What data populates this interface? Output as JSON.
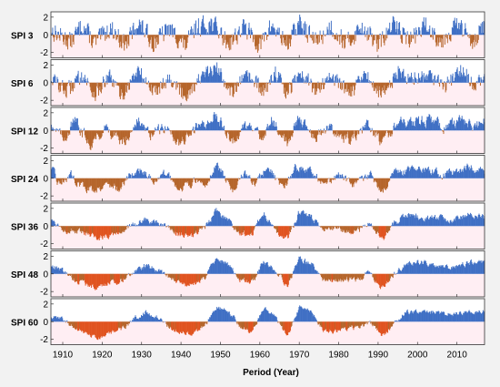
{
  "chart_data": {
    "type": "bar",
    "xlabel": "Period (Year)",
    "x_range": [
      1907,
      2017
    ],
    "x_ticks": [
      "1910",
      "1920",
      "1930",
      "1940",
      "1950",
      "1960",
      "1970",
      "1980",
      "1990",
      "2000",
      "2010"
    ],
    "y_ticks": [
      "2",
      "0",
      "-2"
    ],
    "ylim": [
      -2.6,
      2.6
    ],
    "grid": false,
    "colors": {
      "positive": "#3f6fc4",
      "negative": "#b5652a",
      "negative_alt": "#e0531f",
      "background_wet": "#ffffff",
      "background_dry": "#ffe0ea"
    },
    "panels": [
      {
        "label": "SPI 3",
        "series_key": "spi3",
        "waypoints": [
          [
            1907,
            0.5
          ],
          [
            1912,
            -0.8
          ],
          [
            1915,
            1.2
          ],
          [
            1918,
            -1.0
          ],
          [
            1922,
            0.8
          ],
          [
            1926,
            -1.2
          ],
          [
            1929,
            1.4
          ],
          [
            1933,
            -0.9
          ],
          [
            1937,
            0.7
          ],
          [
            1941,
            -1.3
          ],
          [
            1944,
            0.9
          ],
          [
            1948,
            1.3
          ],
          [
            1952,
            -1.0
          ],
          [
            1956,
            0.9
          ],
          [
            1960,
            -1.2
          ],
          [
            1963,
            1.1
          ],
          [
            1967,
            -1.1
          ],
          [
            1970,
            1.4
          ],
          [
            1974,
            -0.8
          ],
          [
            1978,
            0.9
          ],
          [
            1982,
            -1.0
          ],
          [
            1986,
            1.0
          ],
          [
            1990,
            -1.2
          ],
          [
            1994,
            1.2
          ],
          [
            1998,
            -0.6
          ],
          [
            2002,
            1.1
          ],
          [
            2006,
            -0.7
          ],
          [
            2010,
            1.2
          ],
          [
            2014,
            -0.6
          ],
          [
            2017,
            1.0
          ]
        ]
      },
      {
        "label": "SPI 6",
        "series_key": "spi6",
        "waypoints": [
          [
            1907,
            0.6
          ],
          [
            1911,
            -1.0
          ],
          [
            1915,
            1.0
          ],
          [
            1918,
            -1.3
          ],
          [
            1922,
            0.6
          ],
          [
            1925,
            -1.5
          ],
          [
            1929,
            1.4
          ],
          [
            1933,
            -1.0
          ],
          [
            1937,
            0.6
          ],
          [
            1941,
            -1.5
          ],
          [
            1945,
            0.6
          ],
          [
            1949,
            1.6
          ],
          [
            1953,
            -1.0
          ],
          [
            1957,
            0.8
          ],
          [
            1961,
            -1.1
          ],
          [
            1964,
            1.2
          ],
          [
            1967,
            -1.4
          ],
          [
            1970,
            1.5
          ],
          [
            1974,
            -0.9
          ],
          [
            1978,
            0.8
          ],
          [
            1983,
            -1.1
          ],
          [
            1987,
            0.8
          ],
          [
            1991,
            -1.4
          ],
          [
            1995,
            1.2
          ],
          [
            1999,
            0.5
          ],
          [
            2003,
            1.0
          ],
          [
            2007,
            -0.4
          ],
          [
            2011,
            1.4
          ],
          [
            2015,
            -0.5
          ],
          [
            2017,
            1.1
          ]
        ]
      },
      {
        "label": "SPI 12",
        "series_key": "spi12",
        "waypoints": [
          [
            1907,
            0.9
          ],
          [
            1910,
            -0.9
          ],
          [
            1913,
            1.0
          ],
          [
            1917,
            -1.4
          ],
          [
            1921,
            0.4
          ],
          [
            1925,
            -1.6
          ],
          [
            1929,
            1.3
          ],
          [
            1932,
            -0.6
          ],
          [
            1936,
            0.4
          ],
          [
            1940,
            -1.5
          ],
          [
            1944,
            0.3
          ],
          [
            1949,
            1.7
          ],
          [
            1953,
            -1.1
          ],
          [
            1957,
            0.6
          ],
          [
            1960,
            -1.0
          ],
          [
            1963,
            1.2
          ],
          [
            1967,
            -1.5
          ],
          [
            1970,
            1.6
          ],
          [
            1974,
            -0.7
          ],
          [
            1978,
            0.5
          ],
          [
            1983,
            -1.2
          ],
          [
            1987,
            0.6
          ],
          [
            1991,
            -1.6
          ],
          [
            1995,
            1.1
          ],
          [
            1999,
            0.7
          ],
          [
            2003,
            1.2
          ],
          [
            2007,
            0.2
          ],
          [
            2011,
            1.2
          ],
          [
            2015,
            0.3
          ],
          [
            2017,
            0.9
          ]
        ]
      },
      {
        "label": "SPI 24",
        "series_key": "spi24",
        "waypoints": [
          [
            1907,
            1.2
          ],
          [
            1909,
            -0.6
          ],
          [
            1912,
            0.4
          ],
          [
            1915,
            -1.0
          ],
          [
            1918,
            -1.3
          ],
          [
            1921,
            -0.6
          ],
          [
            1924,
            -1.2
          ],
          [
            1927,
            0.3
          ],
          [
            1930,
            1.0
          ],
          [
            1933,
            -0.3
          ],
          [
            1936,
            0.5
          ],
          [
            1940,
            -1.2
          ],
          [
            1943,
            -0.4
          ],
          [
            1946,
            -0.8
          ],
          [
            1949,
            1.6
          ],
          [
            1953,
            -1.3
          ],
          [
            1956,
            0.4
          ],
          [
            1959,
            -0.7
          ],
          [
            1962,
            1.4
          ],
          [
            1966,
            -1.6
          ],
          [
            1969,
            1.4
          ],
          [
            1973,
            0.6
          ],
          [
            1976,
            -0.6
          ],
          [
            1980,
            0.2
          ],
          [
            1984,
            -0.8
          ],
          [
            1988,
            0.4
          ],
          [
            1991,
            -1.7
          ],
          [
            1994,
            0.6
          ],
          [
            1998,
            0.9
          ],
          [
            2002,
            1.0
          ],
          [
            2006,
            0.5
          ],
          [
            2010,
            0.8
          ],
          [
            2013,
            1.3
          ],
          [
            2017,
            0.7
          ]
        ]
      },
      {
        "label": "SPI 36",
        "series_key": "spi36",
        "waypoints": [
          [
            1907,
            0.8
          ],
          [
            1910,
            -0.3
          ],
          [
            1913,
            -0.6
          ],
          [
            1916,
            -1.0
          ],
          [
            1919,
            -1.4
          ],
          [
            1922,
            -0.9
          ],
          [
            1925,
            -0.6
          ],
          [
            1928,
            0.2
          ],
          [
            1931,
            0.7
          ],
          [
            1934,
            0.3
          ],
          [
            1937,
            -0.4
          ],
          [
            1940,
            -1.0
          ],
          [
            1943,
            -1.1
          ],
          [
            1946,
            -0.3
          ],
          [
            1949,
            1.8
          ],
          [
            1952,
            0.6
          ],
          [
            1955,
            -0.9
          ],
          [
            1958,
            -0.7
          ],
          [
            1961,
            1.5
          ],
          [
            1964,
            -0.6
          ],
          [
            1967,
            -1.4
          ],
          [
            1970,
            1.6
          ],
          [
            1973,
            1.1
          ],
          [
            1976,
            -0.5
          ],
          [
            1979,
            -0.3
          ],
          [
            1982,
            -0.7
          ],
          [
            1985,
            -0.5
          ],
          [
            1988,
            0.3
          ],
          [
            1991,
            -1.6
          ],
          [
            1994,
            0.3
          ],
          [
            1997,
            1.3
          ],
          [
            2001,
            1.0
          ],
          [
            2005,
            0.9
          ],
          [
            2009,
            0.7
          ],
          [
            2013,
            1.4
          ],
          [
            2017,
            0.9
          ]
        ]
      },
      {
        "label": "SPI 48",
        "series_key": "spi48",
        "waypoints": [
          [
            1907,
            0.9
          ],
          [
            1910,
            0.3
          ],
          [
            1913,
            -0.7
          ],
          [
            1916,
            -1.2
          ],
          [
            1919,
            -1.5
          ],
          [
            1922,
            -1.0
          ],
          [
            1925,
            -0.7
          ],
          [
            1928,
            0.3
          ],
          [
            1931,
            1.0
          ],
          [
            1934,
            0.4
          ],
          [
            1937,
            -0.5
          ],
          [
            1940,
            -1.1
          ],
          [
            1943,
            -1.3
          ],
          [
            1946,
            -0.4
          ],
          [
            1949,
            1.7
          ],
          [
            1952,
            1.0
          ],
          [
            1955,
            -0.6
          ],
          [
            1958,
            -1.0
          ],
          [
            1961,
            1.4
          ],
          [
            1964,
            0.2
          ],
          [
            1967,
            -1.4
          ],
          [
            1970,
            1.7
          ],
          [
            1973,
            1.2
          ],
          [
            1976,
            -0.8
          ],
          [
            1979,
            -0.9
          ],
          [
            1982,
            -0.6
          ],
          [
            1985,
            -0.6
          ],
          [
            1988,
            0.1
          ],
          [
            1991,
            -1.6
          ],
          [
            1994,
            0.0
          ],
          [
            1997,
            1.2
          ],
          [
            2001,
            1.3
          ],
          [
            2005,
            1.0
          ],
          [
            2009,
            0.7
          ],
          [
            2013,
            1.2
          ],
          [
            2017,
            1.3
          ]
        ]
      },
      {
        "label": "SPI 60",
        "series_key": "spi60",
        "waypoints": [
          [
            1907,
            0.5
          ],
          [
            1910,
            0.3
          ],
          [
            1913,
            -0.7
          ],
          [
            1916,
            -1.4
          ],
          [
            1919,
            -1.9
          ],
          [
            1922,
            -1.3
          ],
          [
            1925,
            -0.8
          ],
          [
            1928,
            0.3
          ],
          [
            1931,
            1.1
          ],
          [
            1934,
            0.5
          ],
          [
            1937,
            -0.6
          ],
          [
            1940,
            -1.2
          ],
          [
            1943,
            -1.4
          ],
          [
            1946,
            -0.5
          ],
          [
            1949,
            1.6
          ],
          [
            1952,
            1.1
          ],
          [
            1955,
            -0.5
          ],
          [
            1958,
            -1.2
          ],
          [
            1961,
            1.5
          ],
          [
            1964,
            0.5
          ],
          [
            1967,
            -1.6
          ],
          [
            1970,
            1.6
          ],
          [
            1973,
            1.3
          ],
          [
            1976,
            -0.9
          ],
          [
            1979,
            -1.1
          ],
          [
            1982,
            -0.7
          ],
          [
            1985,
            -0.7
          ],
          [
            1988,
            -0.1
          ],
          [
            1991,
            -1.6
          ],
          [
            1994,
            -0.3
          ],
          [
            1997,
            1.1
          ],
          [
            2001,
            1.1
          ],
          [
            2005,
            1.0
          ],
          [
            2009,
            0.8
          ],
          [
            2013,
            1.1
          ],
          [
            2017,
            1.2
          ]
        ]
      }
    ]
  }
}
